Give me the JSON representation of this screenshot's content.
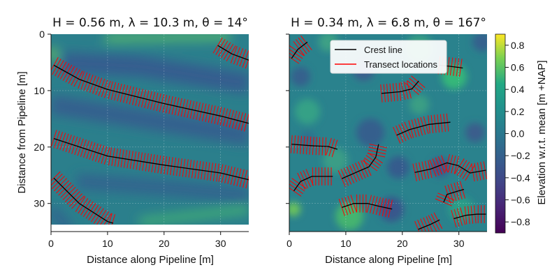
{
  "chart_data": [
    {
      "type": "heatmap",
      "title": "H = 0.56 m, λ = 10.3 m, θ = 14°",
      "xlabel": "Distance along Pipeline [m]",
      "ylabel": "Distance from Pipeline [m]",
      "xlim": [
        0,
        35
      ],
      "ylim": [
        35,
        0
      ],
      "xticks": [
        "0",
        "10",
        "20",
        "30"
      ],
      "yticks": [
        "0",
        "10",
        "20",
        "30"
      ],
      "grid": true,
      "crest_lines": [
        [
          [
            0.5,
            5.5
          ],
          [
            5,
            8
          ],
          [
            10,
            9.8
          ],
          [
            20,
            12.3
          ],
          [
            30,
            14.5
          ],
          [
            35,
            15.8
          ]
        ],
        [
          [
            0.5,
            18.5
          ],
          [
            10,
            21.6
          ],
          [
            20,
            23.2
          ],
          [
            30,
            24.6
          ],
          [
            35,
            25.8
          ]
        ],
        [
          [
            0.5,
            25.5
          ],
          [
            5,
            30
          ],
          [
            10,
            33.2
          ],
          [
            11,
            33.5
          ]
        ],
        [
          [
            29.5,
            2
          ],
          [
            32,
            3.5
          ],
          [
            35,
            4.6
          ]
        ]
      ]
    },
    {
      "type": "heatmap",
      "title": "H = 0.34 m, λ = 6.8 m, θ = 167°",
      "xlabel": "Distance along Pipeline [m]",
      "ylabel": "",
      "xlim": [
        0,
        35
      ],
      "ylim": [
        35,
        0
      ],
      "xticks": [
        "0",
        "10",
        "20",
        "30"
      ],
      "grid": true,
      "legend": {
        "placement": "top-center",
        "entries": [
          {
            "label": "Crest line",
            "color": "#000000"
          },
          {
            "label": "Transect locations",
            "color": "#ff0000"
          }
        ]
      },
      "crest_lines": [
        [
          [
            0.4,
            4.3
          ],
          [
            1.5,
            2.7
          ],
          [
            3.2,
            1.4
          ]
        ],
        [
          [
            26.5,
            5.5
          ],
          [
            28.5,
            5.7
          ],
          [
            30.7,
            6.0
          ]
        ],
        [
          [
            16.3,
            10.5
          ],
          [
            19.6,
            10.2
          ],
          [
            21.7,
            9.7
          ],
          [
            22.9,
            8.3
          ]
        ],
        [
          [
            19,
            17.9
          ],
          [
            21.3,
            16.9
          ],
          [
            24.6,
            16
          ],
          [
            28.5,
            15.6
          ]
        ],
        [
          [
            0.4,
            19.5
          ],
          [
            4.4,
            19.8
          ],
          [
            6.9,
            19.9
          ],
          [
            8.5,
            20.4
          ]
        ],
        [
          [
            9.3,
            25.6
          ],
          [
            11.8,
            24.5
          ],
          [
            14.1,
            23.5
          ],
          [
            15.3,
            21.8
          ],
          [
            15.8,
            19.5
          ]
        ],
        [
          [
            0.8,
            27.8
          ],
          [
            2,
            26.1
          ],
          [
            4,
            25.2
          ],
          [
            7.7,
            25.2
          ]
        ],
        [
          [
            22.2,
            24.5
          ],
          [
            25,
            23.9
          ],
          [
            27.9,
            22.8
          ],
          [
            29.9,
            23.3
          ],
          [
            32,
            24.6
          ],
          [
            34.8,
            24.1
          ]
        ],
        [
          [
            27.3,
            29.8
          ],
          [
            27.9,
            28.4
          ],
          [
            29.5,
            27.9
          ],
          [
            30.9,
            27.5
          ]
        ],
        [
          [
            9.3,
            30.7
          ],
          [
            11.4,
            30
          ],
          [
            13.9,
            30
          ],
          [
            15.9,
            30.5
          ],
          [
            18.2,
            31
          ]
        ],
        [
          [
            22.8,
            34.6
          ],
          [
            25,
            33.7
          ],
          [
            26.6,
            32.9
          ]
        ],
        [
          [
            29.1,
            32.7
          ],
          [
            31.2,
            32.1
          ],
          [
            33.2,
            31.9
          ],
          [
            34.8,
            31.9
          ]
        ]
      ]
    }
  ],
  "colorbar": {
    "label": "Elevation w.r.t. mean [m +NAP]",
    "range": [
      -0.9,
      0.9
    ],
    "colormap": "viridis",
    "ticks": [
      "0.8",
      "0.6",
      "0.4",
      "0.2",
      "0.0",
      "−0.2",
      "−0.4",
      "−0.6",
      "−0.8"
    ],
    "tick_values": [
      0.8,
      0.6,
      0.4,
      0.2,
      0.0,
      -0.2,
      -0.4,
      -0.6,
      -0.8
    ]
  },
  "colors": {
    "crest": "#000000",
    "transect": "#ff0000"
  }
}
